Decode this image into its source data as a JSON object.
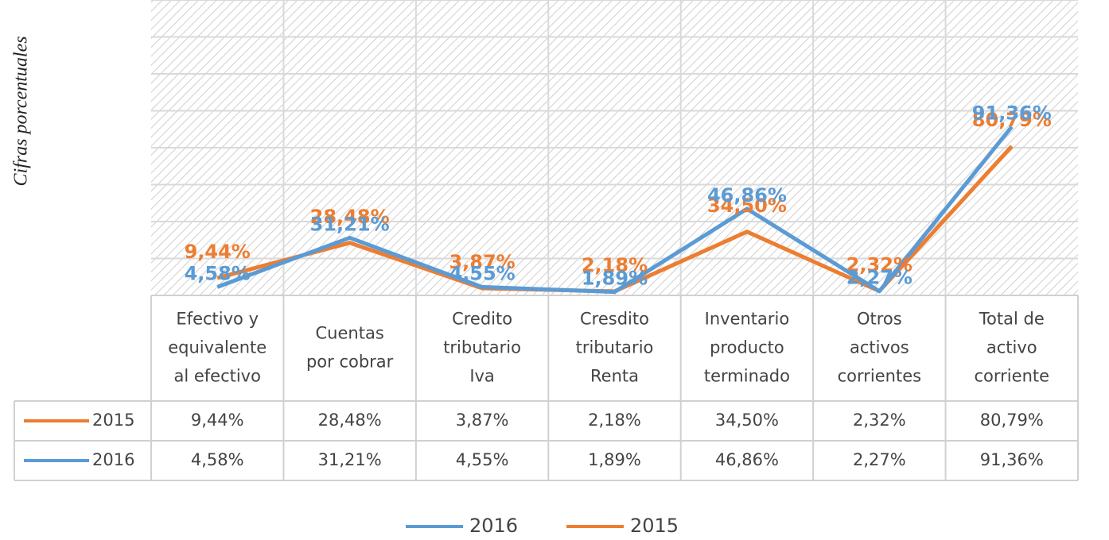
{
  "chart_data": {
    "type": "line",
    "y_label": "Cifras porcentuales",
    "categories": [
      "Efectivo y\nequivalente\nal efectivo",
      "Cuentas\npor cobrar",
      "Credito\ntributario\nIva",
      "Cresdito\ntributario\nRenta",
      "Inventario\nproducto\nterminado",
      "Otros\nactivos\ncorrientes",
      "Total de\nactivo\ncorriente"
    ],
    "series": [
      {
        "name": "2015",
        "color": "#ED7D31",
        "values": [
          9.44,
          28.48,
          3.87,
          2.18,
          34.5,
          2.32,
          80.79
        ],
        "value_labels": [
          "9,44%",
          "28,48%",
          "3,87%",
          "2,18%",
          "34,50%",
          "2,32%",
          "80,79%"
        ]
      },
      {
        "name": "2016",
        "color": "#5B9BD5",
        "values": [
          4.58,
          31.21,
          4.55,
          1.89,
          46.86,
          2.27,
          91.36
        ],
        "value_labels": [
          "4,58%",
          "31,21%",
          "4,55%",
          "1,89%",
          "46,86%",
          "2,27%",
          "91,36%"
        ]
      }
    ],
    "legend_order": [
      "2016",
      "2015"
    ],
    "ylim": [
      0,
      160
    ],
    "yticks": [
      0,
      20,
      40,
      60,
      80,
      100,
      120,
      140,
      160
    ],
    "grid": true,
    "data_table": true
  }
}
